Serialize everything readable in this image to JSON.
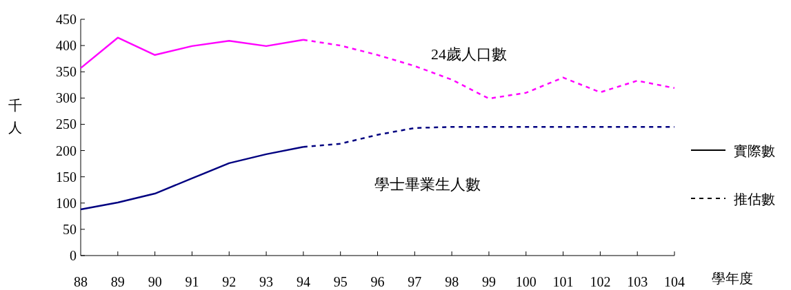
{
  "chart_data": {
    "type": "line",
    "ylabel": "千人",
    "xlabel": "學年度",
    "categories": [
      "88",
      "89",
      "90",
      "91",
      "92",
      "93",
      "94",
      "95",
      "96",
      "97",
      "98",
      "99",
      "100",
      "101",
      "102",
      "103",
      "104"
    ],
    "ylim": [
      0,
      450
    ],
    "yticks": [
      0,
      50,
      100,
      150,
      200,
      250,
      300,
      350,
      400,
      450
    ],
    "series": [
      {
        "name": "24歲人口數",
        "color": "#ff00ff",
        "line_style": "solid",
        "values": [
          357,
          415,
          382,
          399,
          409,
          399,
          411,
          null,
          null,
          null,
          null,
          null,
          null,
          null,
          null,
          null,
          null
        ]
      },
      {
        "color": "#ff00ff",
        "line_style": "dashed",
        "values": [
          null,
          null,
          null,
          null,
          null,
          null,
          411,
          400,
          382,
          361,
          335,
          299,
          310,
          339,
          311,
          333,
          319
        ]
      },
      {
        "name": "學士畢業生人數",
        "color": "#000080",
        "line_style": "solid",
        "values": [
          88,
          101,
          118,
          147,
          176,
          193,
          207,
          null,
          null,
          null,
          null,
          null,
          null,
          null,
          null,
          null,
          null
        ]
      },
      {
        "color": "#000080",
        "line_style": "dashed",
        "values": [
          null,
          null,
          null,
          null,
          null,
          null,
          207,
          213,
          230,
          243,
          245,
          245,
          245,
          245,
          245,
          245,
          245
        ]
      }
    ],
    "annotations": [
      "實際數",
      "推估數"
    ]
  }
}
